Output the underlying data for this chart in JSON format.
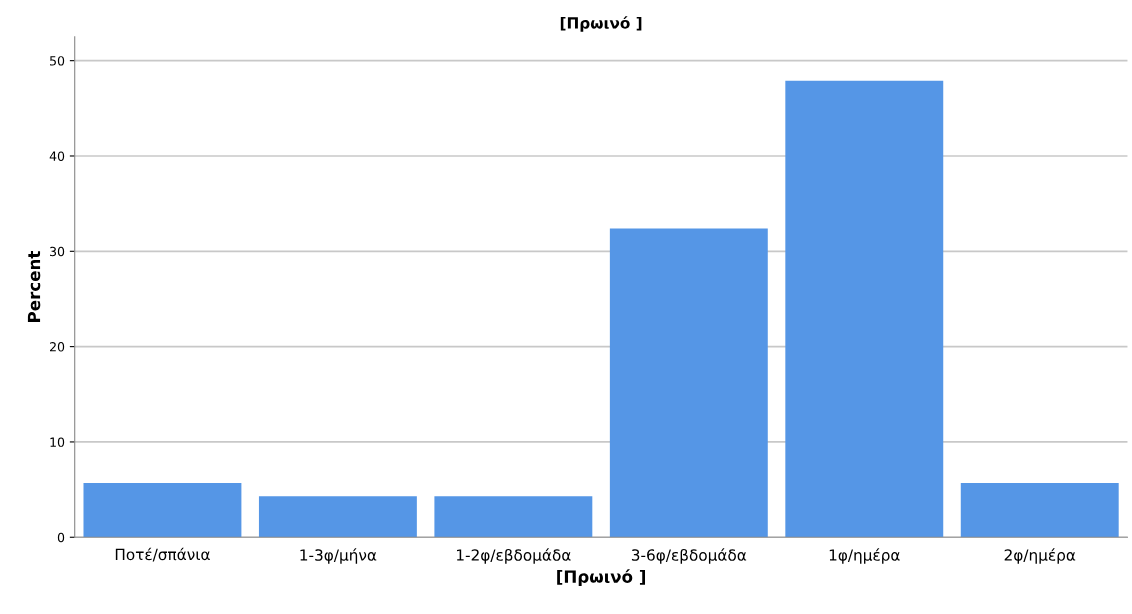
{
  "chart_data": {
    "type": "bar",
    "title": "[Πρωινό ]",
    "xlabel": "[Πρωινό ]",
    "ylabel": "Percent",
    "categories": [
      "Ποτέ/σπάνια",
      "1-3φ/μήνα",
      "1-2φ/εβδομάδα",
      "3-6φ/εβδομάδα",
      "1φ/ημέρα",
      "2φ/ημέρα"
    ],
    "values": [
      5.7,
      4.3,
      4.3,
      32.4,
      47.9,
      5.7
    ],
    "color": "#5596e6",
    "ylim": [
      0,
      52.5
    ],
    "yticks": [
      0,
      10,
      20,
      30,
      40,
      50
    ],
    "grid": "y"
  }
}
